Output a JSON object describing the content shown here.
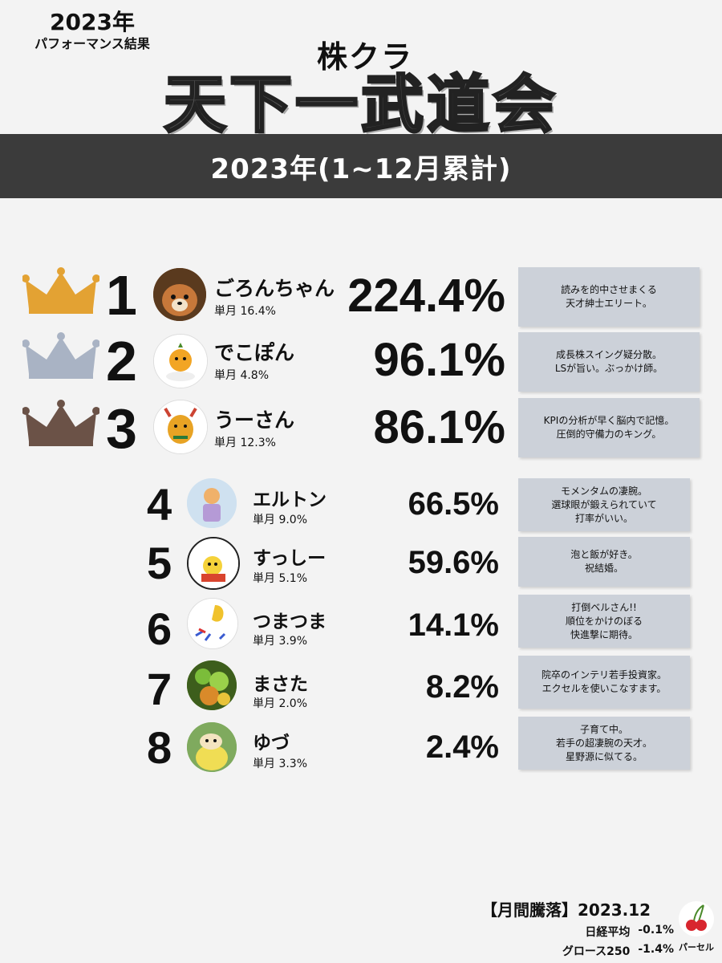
{
  "header": {
    "year_label": "2023年",
    "subtitle": "パフォーマンス結果",
    "brand": "株クラ",
    "title": "天下一武道会",
    "period": "2023年(1~12月累計)"
  },
  "monthly_prefix": "単月",
  "colors": {
    "gold": "#e3a233",
    "silver": "#a9b3c4",
    "bronze": "#6b5247",
    "note_bg": "#ccd1d9",
    "banner": "#3b3b3b"
  },
  "rankings": [
    {
      "rank": "1",
      "name": "ごろんちゃん",
      "monthly": "16.4%",
      "performance": "224.4%",
      "note": [
        "読みを的中させまくる",
        "天才紳士エリート。"
      ],
      "crown": "gold-crown-icon"
    },
    {
      "rank": "2",
      "name": "でこぽん",
      "monthly": "4.8%",
      "performance": "96.1%",
      "note": [
        "成長株スイング疑分散。",
        "LSが旨い。ぶっかけ師。"
      ],
      "crown": "silver-crown-icon"
    },
    {
      "rank": "3",
      "name": "うーさん",
      "monthly": "12.3%",
      "performance": "86.1%",
      "note": [
        "KPIの分析が早く脳内で記憶。",
        "圧倒的守備力のキング。"
      ],
      "crown": "bronze-crown-icon"
    },
    {
      "rank": "4",
      "name": "エルトン",
      "monthly": "9.0%",
      "performance": "66.5%",
      "note": [
        "モメンタムの凄腕。",
        "選球眼が鍛えられていて",
        "打率がいい。"
      ]
    },
    {
      "rank": "5",
      "name": "すっしー",
      "monthly": "5.1%",
      "performance": "59.6%",
      "note": [
        "泡と飯が好き。",
        "祝結婚。"
      ]
    },
    {
      "rank": "6",
      "name": "つまつま",
      "monthly": "3.9%",
      "performance": "14.1%",
      "note": [
        "打倒ベルさん!!",
        "順位をかけのぼる",
        "快進撃に期待。"
      ]
    },
    {
      "rank": "7",
      "name": "まさた",
      "monthly": "2.0%",
      "performance": "8.2%",
      "note": [
        "院卒のインテリ若手投資家。",
        "エクセルを使いこなすます。"
      ]
    },
    {
      "rank": "8",
      "name": "ゆづ",
      "monthly": "3.3%",
      "performance": "2.4%",
      "note": [
        "子育て中。",
        "若手の超凄腕の天才。",
        "星野源に似てる。"
      ]
    }
  ],
  "footer": {
    "heading": "【月間騰落】2023.12",
    "indices": [
      {
        "name": "日経平均",
        "value": "-0.1%"
      },
      {
        "name": "グロース250",
        "value": "-1.4%"
      }
    ],
    "logo_text": "パーセル"
  }
}
